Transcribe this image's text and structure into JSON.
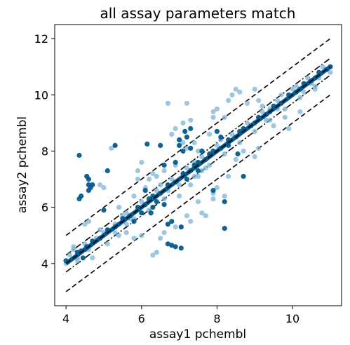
{
  "chart_data": {
    "type": "scatter",
    "title": "all assay parameters match",
    "xlabel": "assay1 pchembl",
    "ylabel": "assay2 pchembl",
    "xlim": [
      3.7,
      11.3
    ],
    "ylim": [
      2.5,
      12.5
    ],
    "xticks": [
      4,
      6,
      8,
      10
    ],
    "yticks": [
      4,
      6,
      8,
      10,
      12
    ],
    "xtick_labels": [
      "4",
      "6",
      "8",
      "10"
    ],
    "ytick_labels": [
      "4",
      "6",
      "8",
      "10",
      "12"
    ],
    "grid": false,
    "colors": {
      "light": "#7fb3d5",
      "dark": "#045a8d",
      "line": "#000000"
    },
    "reference_lines": [
      {
        "offset": 1.0,
        "style": "dashed"
      },
      {
        "offset": -1.0,
        "style": "dashed"
      },
      {
        "offset": 0.3,
        "style": "dashdot"
      },
      {
        "offset": -0.3,
        "style": "dashdot"
      }
    ],
    "series": [
      {
        "shade": "light",
        "points": [
          [
            4.0,
            4.0
          ],
          [
            4.1,
            4.3
          ],
          [
            4.2,
            4.5
          ],
          [
            4.3,
            4.2
          ],
          [
            4.5,
            4.7
          ],
          [
            4.6,
            4.5
          ],
          [
            4.8,
            4.9
          ],
          [
            5.0,
            5.1
          ],
          [
            5.1,
            4.7
          ],
          [
            5.3,
            5.4
          ],
          [
            5.4,
            5.0
          ],
          [
            5.6,
            5.8
          ],
          [
            5.8,
            5.6
          ],
          [
            6.0,
            6.2
          ],
          [
            6.2,
            5.9
          ],
          [
            6.4,
            6.6
          ],
          [
            6.6,
            6.3
          ],
          [
            6.8,
            7.0
          ],
          [
            7.0,
            6.8
          ],
          [
            7.2,
            7.4
          ],
          [
            7.4,
            7.1
          ],
          [
            7.6,
            7.8
          ],
          [
            7.8,
            7.5
          ],
          [
            8.0,
            8.2
          ],
          [
            8.2,
            7.9
          ],
          [
            8.4,
            8.6
          ],
          [
            8.6,
            8.3
          ],
          [
            8.8,
            9.0
          ],
          [
            9.0,
            8.7
          ],
          [
            9.2,
            9.4
          ],
          [
            9.4,
            9.1
          ],
          [
            9.6,
            9.8
          ],
          [
            9.8,
            9.5
          ],
          [
            10.0,
            10.2
          ],
          [
            10.2,
            9.9
          ],
          [
            10.4,
            10.6
          ],
          [
            10.6,
            10.3
          ],
          [
            10.8,
            11.0
          ],
          [
            11.0,
            10.8
          ],
          [
            4.6,
            5.5
          ],
          [
            4.5,
            5.4
          ],
          [
            4.2,
            4.6
          ],
          [
            4.3,
            4.1
          ],
          [
            4.7,
            4.2
          ],
          [
            5.2,
            8.1
          ],
          [
            4.9,
            6.8
          ],
          [
            5.0,
            6.7
          ],
          [
            5.9,
            7.3
          ],
          [
            6.0,
            7.6
          ],
          [
            5.9,
            7.0
          ],
          [
            6.2,
            7.0
          ],
          [
            6.4,
            7.1
          ],
          [
            6.6,
            7.3
          ],
          [
            6.7,
            9.7
          ],
          [
            7.2,
            9.7
          ],
          [
            7.1,
            9.0
          ],
          [
            7.3,
            9.1
          ],
          [
            6.8,
            8.6
          ],
          [
            6.9,
            8.8
          ],
          [
            7.1,
            8.3
          ],
          [
            7.2,
            8.1
          ],
          [
            7.4,
            8.3
          ],
          [
            7.5,
            8.0
          ],
          [
            7.8,
            8.6
          ],
          [
            7.9,
            9.2
          ],
          [
            7.9,
            9.4
          ],
          [
            8.0,
            9.5
          ],
          [
            8.2,
            9.2
          ],
          [
            8.3,
            9.8
          ],
          [
            8.4,
            10.0
          ],
          [
            8.5,
            10.2
          ],
          [
            8.6,
            10.1
          ],
          [
            8.8,
            9.7
          ],
          [
            9.0,
            10.2
          ],
          [
            9.1,
            9.8
          ],
          [
            9.1,
            8.1
          ],
          [
            9.0,
            7.8
          ],
          [
            8.7,
            8.0
          ],
          [
            8.5,
            7.7
          ],
          [
            8.3,
            7.1
          ],
          [
            8.2,
            6.4
          ],
          [
            8.0,
            6.7
          ],
          [
            7.9,
            6.5
          ],
          [
            7.5,
            6.2
          ],
          [
            7.6,
            5.8
          ],
          [
            7.7,
            5.7
          ],
          [
            7.9,
            6.3
          ],
          [
            7.3,
            5.5
          ],
          [
            7.2,
            5.7
          ],
          [
            6.9,
            5.3
          ],
          [
            6.6,
            5.1
          ],
          [
            6.5,
            4.9
          ],
          [
            6.4,
            4.4
          ],
          [
            6.3,
            4.3
          ],
          [
            6.0,
            5.0
          ],
          [
            5.8,
            4.9
          ],
          [
            5.7,
            5.6
          ],
          [
            5.6,
            5.1
          ],
          [
            5.4,
            5.4
          ],
          [
            5.3,
            5.1
          ],
          [
            5.4,
            6.0
          ],
          [
            5.8,
            6.4
          ],
          [
            6.1,
            6.7
          ],
          [
            9.3,
            9.1
          ],
          [
            9.5,
            8.9
          ],
          [
            9.8,
            9.2
          ],
          [
            9.9,
            8.8
          ],
          [
            10.2,
            9.4
          ],
          [
            10.6,
            10.2
          ],
          [
            10.9,
            10.9
          ],
          [
            9.6,
            9.5
          ],
          [
            9.4,
            9.5
          ],
          [
            9.2,
            9.6
          ],
          [
            7.4,
            7.6
          ],
          [
            7.6,
            7.3
          ],
          [
            7.7,
            7.4
          ],
          [
            8.1,
            8.4
          ],
          [
            6.5,
            6.8
          ],
          [
            6.7,
            6.6
          ],
          [
            6.3,
            7.2
          ],
          [
            6.9,
            7.5
          ],
          [
            7.5,
            7.1
          ],
          [
            7.0,
            6.4
          ],
          [
            7.3,
            6.8
          ],
          [
            4.9,
            5.2
          ],
          [
            5.5,
            5.7
          ],
          [
            5.6,
            5.4
          ],
          [
            9.7,
            10.0
          ],
          [
            10.1,
            10.3
          ],
          [
            10.3,
            10.1
          ],
          [
            10.5,
            10.4
          ],
          [
            10.7,
            10.6
          ]
        ]
      },
      {
        "shade": "dark",
        "points": [
          [
            4.0,
            4.1
          ],
          [
            4.3,
            4.4
          ],
          [
            4.5,
            4.5
          ],
          [
            4.7,
            4.8
          ],
          [
            4.9,
            4.9
          ],
          [
            5.1,
            5.2
          ],
          [
            5.3,
            5.3
          ],
          [
            5.5,
            5.6
          ],
          [
            5.7,
            5.7
          ],
          [
            5.9,
            6.0
          ],
          [
            6.1,
            6.1
          ],
          [
            6.3,
            6.4
          ],
          [
            6.5,
            6.5
          ],
          [
            6.7,
            6.8
          ],
          [
            6.9,
            6.9
          ],
          [
            7.1,
            7.2
          ],
          [
            7.3,
            7.3
          ],
          [
            7.5,
            7.6
          ],
          [
            7.7,
            7.7
          ],
          [
            7.9,
            8.0
          ],
          [
            8.1,
            8.1
          ],
          [
            8.3,
            8.4
          ],
          [
            8.5,
            8.5
          ],
          [
            8.7,
            8.8
          ],
          [
            8.9,
            8.9
          ],
          [
            9.1,
            9.2
          ],
          [
            9.3,
            9.3
          ],
          [
            9.5,
            9.6
          ],
          [
            9.7,
            9.7
          ],
          [
            9.9,
            10.0
          ],
          [
            10.1,
            10.1
          ],
          [
            10.3,
            10.4
          ],
          [
            10.5,
            10.5
          ],
          [
            10.7,
            10.8
          ],
          [
            10.9,
            10.9
          ],
          [
            11.0,
            11.0
          ],
          [
            4.35,
            7.85
          ],
          [
            4.55,
            7.1
          ],
          [
            4.6,
            7.0
          ],
          [
            4.6,
            6.8
          ],
          [
            4.65,
            6.7
          ],
          [
            4.6,
            6.6
          ],
          [
            4.7,
            6.8
          ],
          [
            4.4,
            6.4
          ],
          [
            4.35,
            6.3
          ],
          [
            5.1,
            7.3
          ],
          [
            5.0,
            5.9
          ],
          [
            5.3,
            8.2
          ],
          [
            6.15,
            8.25
          ],
          [
            6.5,
            8.2
          ],
          [
            6.6,
            7.5
          ],
          [
            6.9,
            7.6
          ],
          [
            7.0,
            8.2
          ],
          [
            7.0,
            8.4
          ],
          [
            7.1,
            8.0
          ],
          [
            7.15,
            8.7
          ],
          [
            7.2,
            8.5
          ],
          [
            7.3,
            8.1
          ],
          [
            7.3,
            8.8
          ],
          [
            8.0,
            8.7
          ],
          [
            8.1,
            8.5
          ],
          [
            8.7,
            7.1
          ],
          [
            8.55,
            7.9
          ],
          [
            8.2,
            5.25
          ],
          [
            8.2,
            6.2
          ],
          [
            7.9,
            6.6
          ],
          [
            6.7,
            4.7
          ],
          [
            6.8,
            4.65
          ],
          [
            6.9,
            4.6
          ],
          [
            7.05,
            4.55
          ],
          [
            6.7,
            5.4
          ],
          [
            6.8,
            5.5
          ],
          [
            7.05,
            5.3
          ],
          [
            6.3,
            6.0
          ],
          [
            6.6,
            6.1
          ],
          [
            6.0,
            5.8
          ],
          [
            4.55,
            4.6
          ],
          [
            4.4,
            4.45
          ],
          [
            4.45,
            4.2
          ],
          [
            5.8,
            5.5
          ],
          [
            6.2,
            6.3
          ],
          [
            6.4,
            6.2
          ],
          [
            7.2,
            7.0
          ],
          [
            7.4,
            7.5
          ],
          [
            7.8,
            7.9
          ],
          [
            8.3,
            8.2
          ],
          [
            8.6,
            8.7
          ],
          [
            9.0,
            9.0
          ],
          [
            9.4,
            9.4
          ],
          [
            10.2,
            10.2
          ],
          [
            10.6,
            10.6
          ],
          [
            6.1,
            6.6
          ],
          [
            6.25,
            5.8
          ],
          [
            7.5,
            7.3
          ],
          [
            7.6,
            8.0
          ]
        ]
      }
    ]
  }
}
